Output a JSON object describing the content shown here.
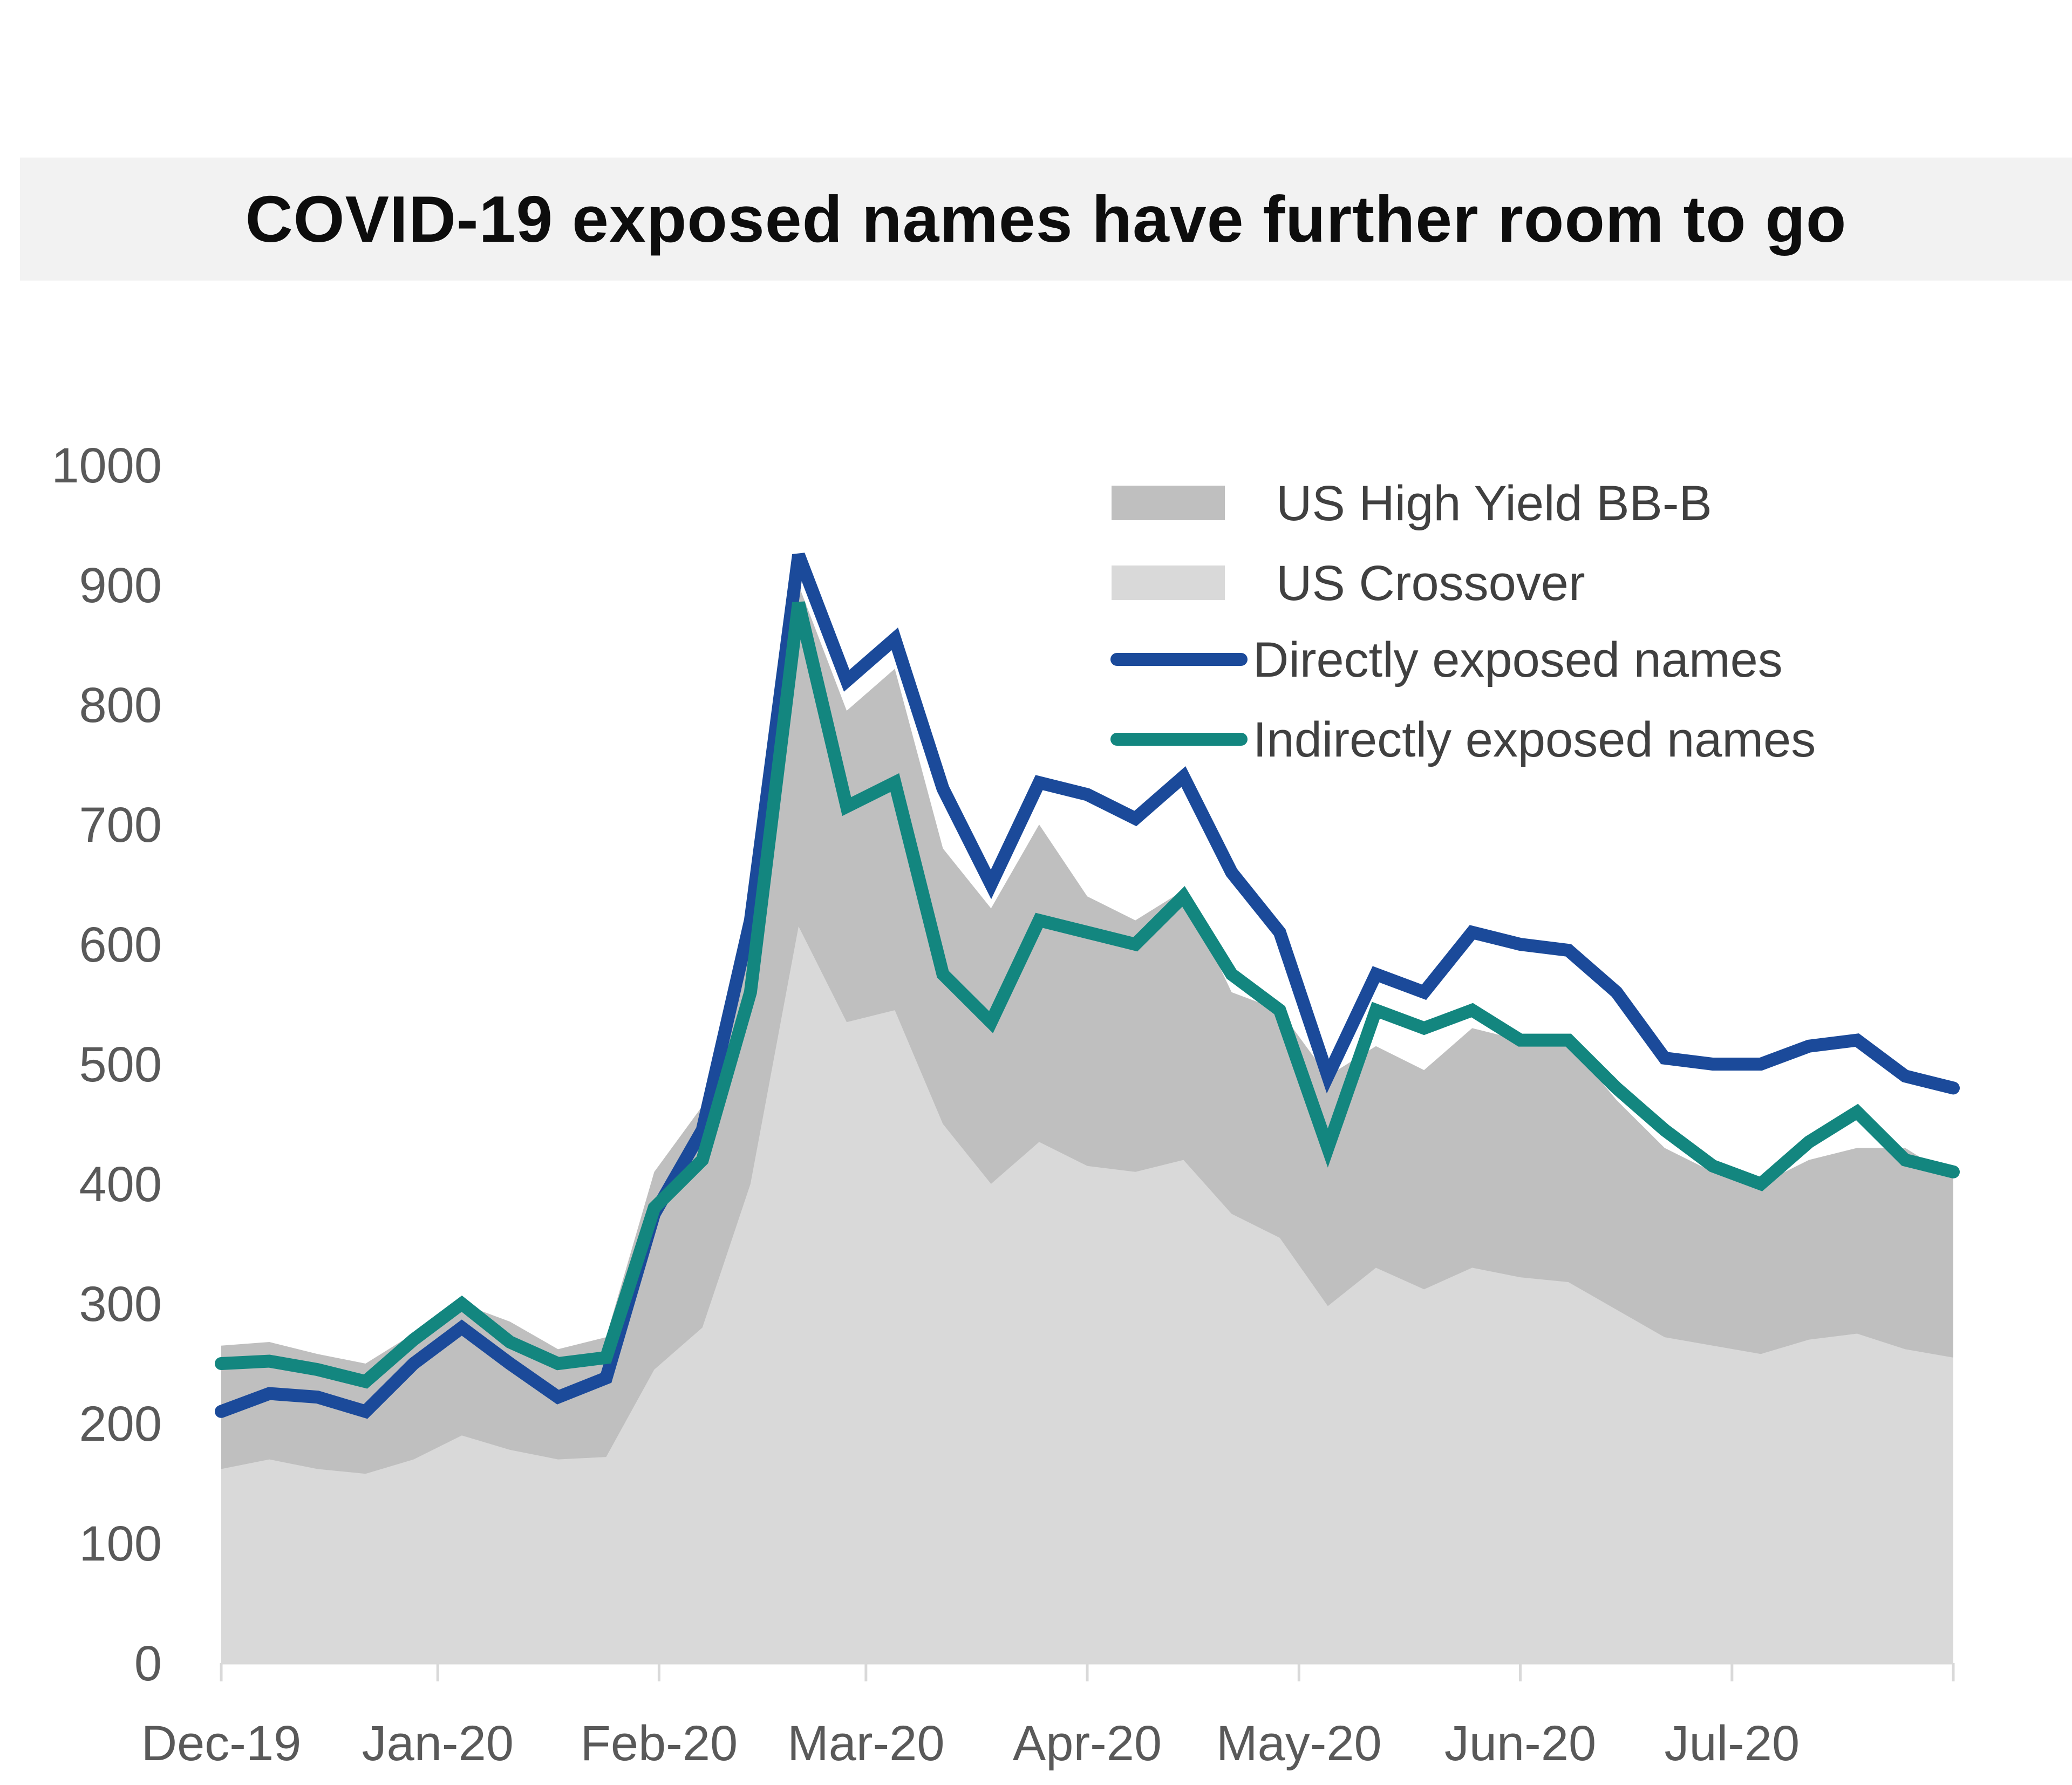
{
  "chart_data": {
    "type": "area",
    "title": "COVID-19  exposed names have further room to go",
    "xlabel": "",
    "ylabel": "",
    "ylim": [
      0,
      1000
    ],
    "yticks": [
      0,
      100,
      200,
      300,
      400,
      500,
      600,
      700,
      800,
      900,
      1000
    ],
    "xticks": [
      {
        "label": "Dec-19",
        "x": 0
      },
      {
        "label": "Jan-20",
        "x": 4.5
      },
      {
        "label": "Feb-20",
        "x": 9.1
      },
      {
        "label": "Mar-20",
        "x": 13.4
      },
      {
        "label": "Apr-20",
        "x": 18.0
      },
      {
        "label": "May-20",
        "x": 22.4
      },
      {
        "label": "Jun-20",
        "x": 27.0
      },
      {
        "label": "Jul-20",
        "x": 31.4
      }
    ],
    "x_max": 36,
    "series": [
      {
        "name": "US High Yield BB-B",
        "kind": "area",
        "color": "#bfbfbf",
        "values": [
          265,
          268,
          258,
          250,
          275,
          300,
          285,
          262,
          272,
          410,
          465,
          610,
          900,
          795,
          830,
          680,
          630,
          700,
          640,
          620,
          645,
          560,
          545,
          490,
          515,
          495,
          530,
          520,
          518,
          470,
          430,
          410,
          400,
          420,
          430,
          430,
          405
        ]
      },
      {
        "name": "US Crossover",
        "kind": "area",
        "color": "#d9d9d9",
        "values": [
          162,
          170,
          162,
          158,
          170,
          190,
          178,
          170,
          172,
          245,
          280,
          400,
          615,
          535,
          545,
          450,
          400,
          435,
          415,
          410,
          420,
          375,
          355,
          298,
          330,
          312,
          330,
          322,
          318,
          295,
          272,
          265,
          258,
          270,
          275,
          262,
          255
        ]
      },
      {
        "name": "Directly exposed names",
        "kind": "line",
        "color": "#1b4a9a",
        "values": [
          210,
          225,
          222,
          210,
          250,
          280,
          250,
          222,
          238,
          375,
          445,
          620,
          925,
          820,
          855,
          730,
          650,
          735,
          725,
          705,
          740,
          660,
          610,
          490,
          575,
          560,
          610,
          600,
          595,
          560,
          505,
          500,
          500,
          515,
          520,
          490,
          480
        ]
      },
      {
        "name": "Indirectly exposed names",
        "kind": "line",
        "color": "#13867f",
        "values": [
          250,
          252,
          245,
          235,
          270,
          300,
          268,
          250,
          255,
          380,
          420,
          560,
          885,
          715,
          735,
          575,
          535,
          620,
          610,
          600,
          640,
          575,
          545,
          430,
          545,
          530,
          545,
          520,
          520,
          480,
          445,
          415,
          400,
          435,
          460,
          420,
          410
        ]
      }
    ],
    "legend": {
      "position": "top-right",
      "entries": [
        "US High Yield BB-B",
        "US Crossover",
        "Directly exposed names",
        "Indirectly exposed names"
      ]
    }
  }
}
